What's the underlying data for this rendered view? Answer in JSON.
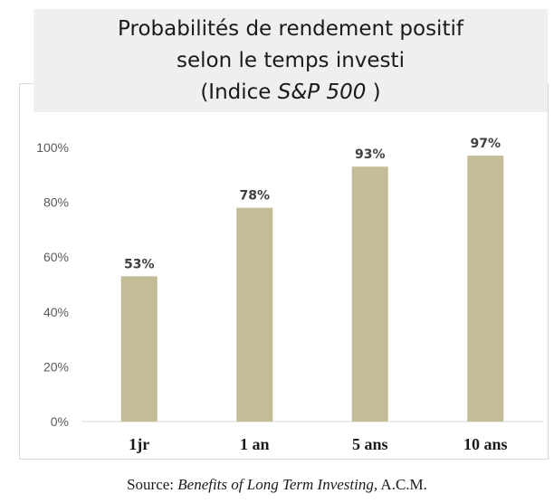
{
  "title": {
    "line1": "Probabilités de rendement positif",
    "line2": "selon le temps investi",
    "line3_prefix": "(Indice ",
    "line3_em": "S&P 500",
    "line3_suffix": " )"
  },
  "source": {
    "prefix": "Source: ",
    "em": "Benefits of Long Term Investing,",
    "suffix": "  A.C.M."
  },
  "chart_data": {
    "type": "bar",
    "categories": [
      "1jr",
      "1 an",
      "5 ans",
      "10 ans"
    ],
    "values": [
      53,
      78,
      93,
      97
    ],
    "data_labels": [
      "53%",
      "78%",
      "93%",
      "97%"
    ],
    "y_ticks": [
      "0%",
      "20%",
      "40%",
      "60%",
      "80%",
      "100%"
    ],
    "ylim": [
      0,
      100
    ],
    "grid": false,
    "bar_color": "#c4bb97",
    "title": "Probabilités de rendement positif selon le temps investi (Indice S&P 500 )",
    "xlabel": "",
    "ylabel": ""
  }
}
